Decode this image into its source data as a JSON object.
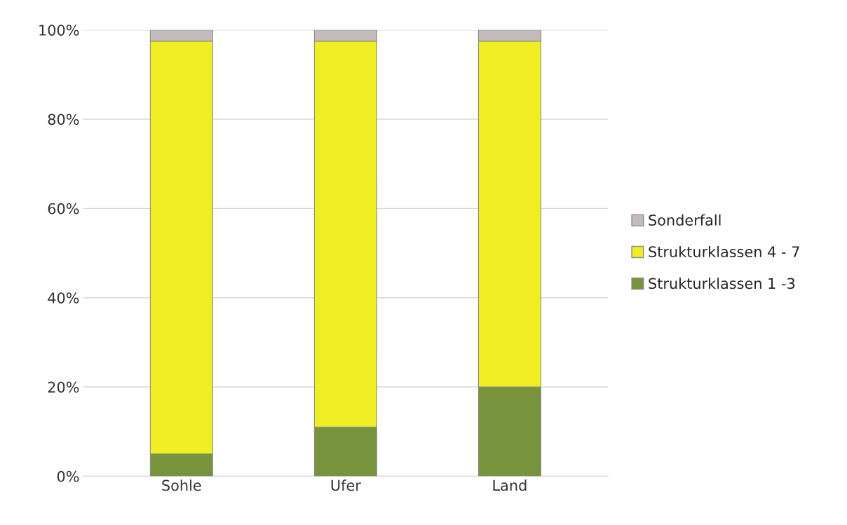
{
  "chart_data": {
    "type": "bar",
    "stacked": true,
    "categories": [
      "Sohle",
      "Ufer",
      "Land"
    ],
    "series": [
      {
        "name": "Strukturklassen 1 -3",
        "color": "#77933c",
        "values": [
          5,
          11,
          20
        ]
      },
      {
        "name": "Strukturklassen 4 - 7",
        "color": "#eeee22",
        "values": [
          92.5,
          86.5,
          77.5
        ]
      },
      {
        "name": "Sonderfall",
        "color": "#c4bcbc",
        "values": [
          2.5,
          2.5,
          2.5
        ]
      }
    ],
    "ylim": [
      0,
      100
    ],
    "yticks": [
      {
        "value": 0,
        "label": "0%"
      },
      {
        "value": 20,
        "label": "20%"
      },
      {
        "value": 40,
        "label": "40%"
      },
      {
        "value": 60,
        "label": "60%"
      },
      {
        "value": 80,
        "label": "80%"
      },
      {
        "value": 100,
        "label": "100%"
      }
    ],
    "grid": "y",
    "legend": "right"
  }
}
